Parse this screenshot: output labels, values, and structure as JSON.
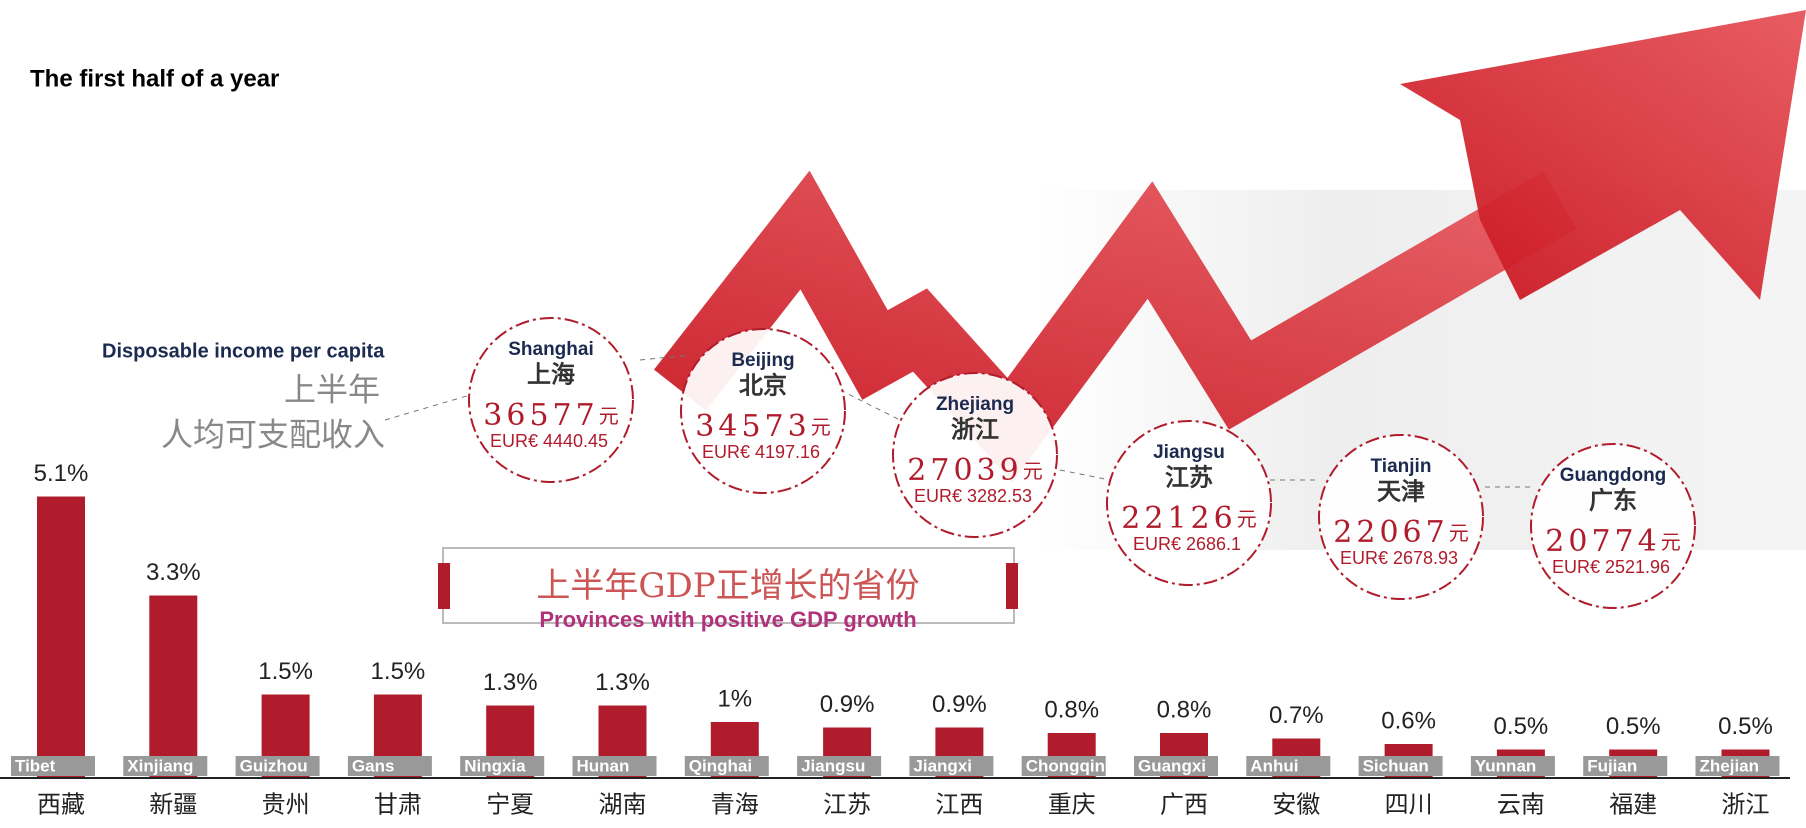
{
  "title": "The first half of a year",
  "income": {
    "heading": "Disposable income per capita",
    "heading_cn_1": "上半年",
    "heading_cn_2": "人均可支配收入",
    "unit": "元",
    "cities": [
      {
        "en": "Shanghai",
        "cn": "上海",
        "value": 36577,
        "eur": "EUR€ 4440.45"
      },
      {
        "en": "Beijing",
        "cn": "北京",
        "value": 34573,
        "eur": "EUR€ 4197.16"
      },
      {
        "en": "Zhejiang",
        "cn": "浙江",
        "value": 27039,
        "eur": "EUR€ 3282.53"
      },
      {
        "en": "Jiangsu",
        "cn": "江苏",
        "value": 22126,
        "eur": "EUR€ 2686.1"
      },
      {
        "en": "Tianjin",
        "cn": "天津",
        "value": 22067,
        "eur": "EUR€ 2678.93"
      },
      {
        "en": "Guangdong",
        "cn": "广东",
        "value": 20774,
        "eur": "EUR€ 2521.96"
      }
    ]
  },
  "chart_data": {
    "type": "bar",
    "title": "上半年GDP正增长的省份",
    "subtitle": "Provinces with positive GDP growth",
    "categories": [
      "西藏",
      "新疆",
      "贵州",
      "甘肃",
      "宁夏",
      "湖南",
      "青海",
      "江苏",
      "江西",
      "重庆",
      "广西",
      "安徽",
      "四川",
      "云南",
      "福建",
      "浙江"
    ],
    "tags": [
      "Tibet",
      "Xinjiang",
      "Guizhou",
      "Gans",
      "Ningxia",
      "Hunan",
      "Qinghai",
      "Jiangsu",
      "Jiangxi",
      "Chongqing",
      "Guangxi",
      "Anhui",
      "Sichuan",
      "Yunnan",
      "Fujian",
      "Zhejian"
    ],
    "values": [
      5.1,
      3.3,
      1.5,
      1.5,
      1.3,
      1.3,
      1,
      0.9,
      0.9,
      0.8,
      0.8,
      0.7,
      0.6,
      0.5,
      0.5,
      0.5
    ],
    "value_labels": [
      "5.1%",
      "3.3%",
      "1.5%",
      "1.5%",
      "1.3%",
      "1.3%",
      "1%",
      "0.9%",
      "0.9%",
      "0.8%",
      "0.8%",
      "0.7%",
      "0.6%",
      "0.5%",
      "0.5%",
      "0.5%"
    ],
    "color": "#b01c2b"
  }
}
